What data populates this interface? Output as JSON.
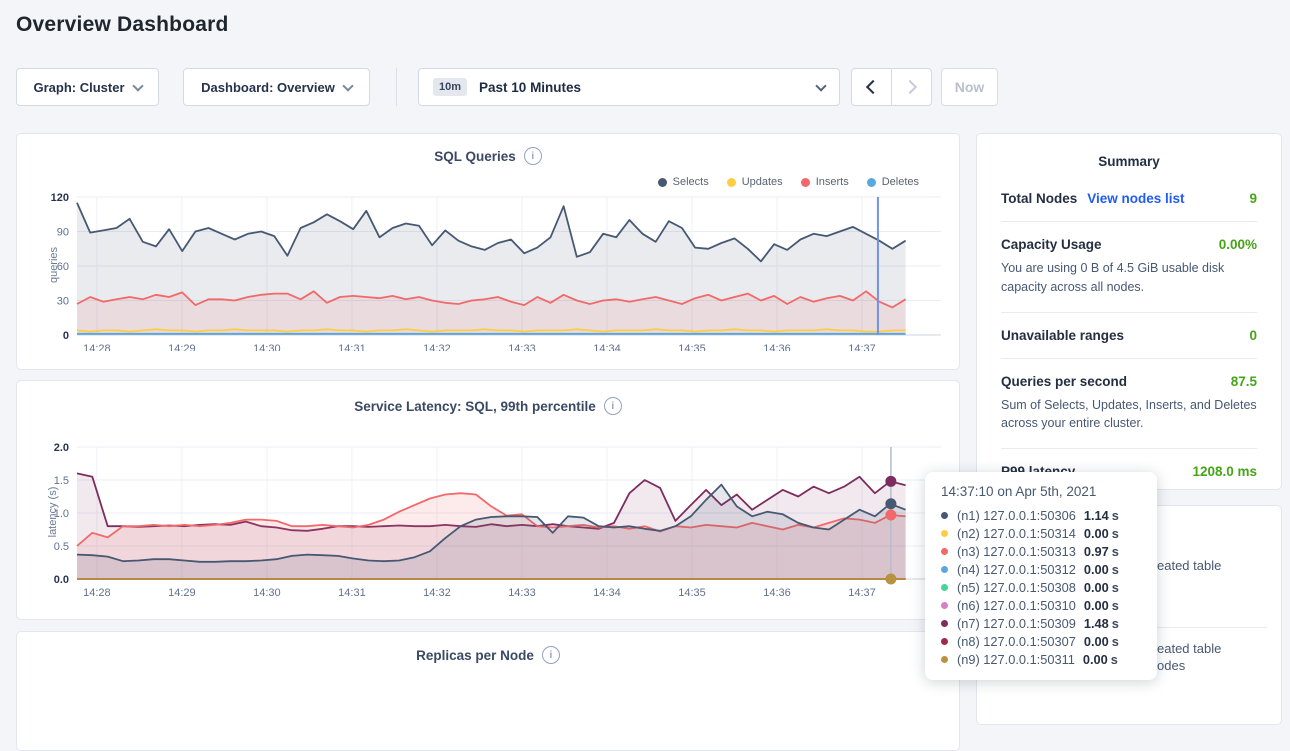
{
  "page": {
    "title": "Overview Dashboard"
  },
  "toolbar": {
    "graph_dropdown": "Graph: Cluster",
    "dashboard_dropdown": "Dashboard: Overview",
    "time_badge": "10m",
    "time_label": "Past 10 Minutes",
    "now_label": "Now"
  },
  "icons": {
    "info": "i"
  },
  "palette": {
    "n1": "#475872",
    "n2": "#FFCD44",
    "n3": "#F16969",
    "n4": "#5BA8DF",
    "n5": "#49D39A",
    "n6": "#D77FC9",
    "n7": "#7D2C5F",
    "n8": "#9E2B49",
    "n9": "#B8933F",
    "green": "#46a417",
    "link_blue": "#1f5cf6"
  },
  "chart_data": [
    {
      "type": "line",
      "title": "SQL Queries",
      "ylabel": "queries",
      "ylim": [
        0,
        120
      ],
      "y_ticks": [
        0,
        30,
        60,
        90,
        120
      ],
      "y_tick_labels": [
        "0",
        "30",
        "60",
        "90",
        "120"
      ],
      "x_ticks": [
        "14:28",
        "14:29",
        "14:30",
        "14:31",
        "14:32",
        "14:33",
        "14:34",
        "14:35",
        "14:36",
        "14:37"
      ],
      "grid": true,
      "legend_position": "top-right",
      "legend": [
        {
          "label": "Selects",
          "color": "#475872"
        },
        {
          "label": "Updates",
          "color": "#FFCD44"
        },
        {
          "label": "Inserts",
          "color": "#F16969"
        },
        {
          "label": "Deletes",
          "color": "#5BA8DF"
        }
      ],
      "series": [
        {
          "name": "Selects",
          "color": "#475872",
          "fill": "rgba(71,88,114,0.12)",
          "values": [
            115,
            89,
            91,
            93,
            101,
            81,
            77,
            92,
            73,
            90,
            93,
            88,
            83,
            88,
            90,
            86,
            69,
            93,
            98,
            105,
            99,
            92,
            108,
            85,
            93,
            97,
            95,
            78,
            91,
            82,
            77,
            74,
            80,
            83,
            71,
            76,
            85,
            112,
            68,
            72,
            88,
            85,
            100,
            88,
            81,
            99,
            93,
            76,
            75,
            80,
            84,
            75,
            64,
            79,
            74,
            83,
            88,
            86,
            90,
            94,
            88,
            82,
            75,
            82
          ]
        },
        {
          "name": "Inserts",
          "color": "#F16969",
          "fill": "rgba(241,105,105,0.12)",
          "values": [
            27,
            33,
            29,
            31,
            33,
            31,
            35,
            33,
            37,
            26,
            31,
            31,
            30,
            33,
            35,
            36,
            36,
            31,
            38,
            28,
            33,
            34,
            33,
            32,
            34,
            31,
            33,
            30,
            28,
            27,
            30,
            31,
            33,
            29,
            26,
            33,
            28,
            35,
            30,
            27,
            30,
            31,
            29,
            31,
            33,
            30,
            27,
            32,
            35,
            30,
            33,
            36,
            30,
            34,
            27,
            33,
            29,
            32,
            34,
            30,
            38,
            29,
            24,
            31
          ]
        },
        {
          "name": "Updates",
          "color": "#FFCD44",
          "fill": "none",
          "values": [
            4,
            3,
            4,
            4,
            3,
            4,
            5,
            4,
            4,
            3,
            4,
            4,
            5,
            4,
            4,
            4,
            3,
            4,
            4,
            5,
            4,
            4,
            3,
            4,
            4,
            5,
            4,
            3,
            4,
            4,
            4,
            5,
            4,
            4,
            3,
            4,
            4,
            4,
            5,
            4,
            3,
            4,
            4,
            4,
            5,
            4,
            4,
            3,
            4,
            4,
            5,
            4,
            4,
            3,
            4,
            4,
            4,
            5,
            4,
            4,
            3,
            3,
            4,
            4
          ]
        },
        {
          "name": "Deletes",
          "color": "#5BA8DF",
          "fill": "none",
          "values": [
            1,
            1
          ]
        }
      ],
      "crosshair": {
        "time": "14:37:10",
        "color": "#7292e8"
      }
    },
    {
      "type": "line",
      "title": "Service Latency: SQL, 99th percentile",
      "ylabel": "latency (s)",
      "ylim": [
        0,
        2.0
      ],
      "y_ticks": [
        0.0,
        0.5,
        1.0,
        1.5,
        2.0
      ],
      "y_tick_labels": [
        "0.0",
        "0.5",
        "1.0",
        "1.5",
        "2.0"
      ],
      "x_ticks": [
        "14:28",
        "14:29",
        "14:30",
        "14:31",
        "14:32",
        "14:33",
        "14:34",
        "14:35",
        "14:36",
        "14:37"
      ],
      "grid": true,
      "series": [
        {
          "name": "(n7) 127.0.0.1:50309",
          "color": "#7D2C5F",
          "fill": "rgba(125,44,95,0.10)",
          "values": [
            1.6,
            1.55,
            0.8,
            0.8,
            0.79,
            0.8,
            0.81,
            0.8,
            0.82,
            0.83,
            0.82,
            0.87,
            0.8,
            0.78,
            0.74,
            0.73,
            0.76,
            0.8,
            0.8,
            0.79,
            0.8,
            0.81,
            0.8,
            0.8,
            0.82,
            0.8,
            0.79,
            0.83,
            0.8,
            0.82,
            0.8,
            0.83,
            0.8,
            0.78,
            0.76,
            0.85,
            1.3,
            1.5,
            1.38,
            0.88,
            1.12,
            1.35,
            1.12,
            1.28,
            1.05,
            1.2,
            1.35,
            1.25,
            1.4,
            1.3,
            1.4,
            1.55,
            1.3,
            1.48,
            1.42
          ]
        },
        {
          "name": "(n3) 127.0.0.1:50313",
          "color": "#F16969",
          "fill": "rgba(241,105,105,0.14)",
          "values": [
            0.5,
            0.7,
            0.63,
            0.8,
            0.8,
            0.82,
            0.8,
            0.82,
            0.8,
            0.82,
            0.85,
            0.9,
            0.9,
            0.88,
            0.8,
            0.8,
            0.82,
            0.8,
            0.78,
            0.82,
            0.9,
            1.02,
            1.12,
            1.22,
            1.28,
            1.3,
            1.28,
            1.1,
            0.96,
            0.98,
            0.8,
            0.78,
            0.8,
            0.82,
            0.78,
            0.8,
            0.76,
            0.8,
            0.72,
            0.8,
            0.78,
            0.82,
            0.8,
            0.78,
            0.85,
            0.8,
            0.75,
            0.82,
            0.78,
            0.85,
            0.92,
            0.9,
            0.85,
            0.97,
            0.95
          ]
        },
        {
          "name": "(n1) 127.0.0.1:50306",
          "color": "#475872",
          "fill": "rgba(71,88,114,0.14)",
          "values": [
            0.37,
            0.36,
            0.34,
            0.27,
            0.28,
            0.3,
            0.3,
            0.28,
            0.26,
            0.26,
            0.27,
            0.27,
            0.28,
            0.3,
            0.35,
            0.37,
            0.36,
            0.35,
            0.31,
            0.28,
            0.27,
            0.28,
            0.33,
            0.42,
            0.62,
            0.8,
            0.9,
            0.94,
            0.95,
            0.95,
            0.94,
            0.7,
            0.95,
            0.93,
            0.8,
            0.78,
            0.8,
            0.76,
            0.73,
            0.8,
            0.95,
            1.2,
            1.43,
            1.1,
            0.95,
            1.02,
            0.98,
            0.85,
            0.78,
            0.75,
            0.9,
            1.05,
            0.95,
            1.14,
            1.05
          ]
        },
        {
          "name": "(n2) 127.0.0.1:50314",
          "color": "#FFCD44",
          "fill": "none",
          "values": [
            0,
            0
          ]
        },
        {
          "name": "(n4) 127.0.0.1:50312",
          "color": "#5BA8DF",
          "fill": "none",
          "values": [
            0,
            0
          ]
        },
        {
          "name": "(n5) 127.0.0.1:50308",
          "color": "#49D39A",
          "fill": "none",
          "values": [
            0,
            0
          ]
        },
        {
          "name": "(n6) 127.0.0.1:50310",
          "color": "#D77FC9",
          "fill": "none",
          "values": [
            0,
            0
          ]
        },
        {
          "name": "(n8) 127.0.0.1:50307",
          "color": "#9E2B49",
          "fill": "none",
          "values": [
            0,
            0
          ]
        },
        {
          "name": "(n9) 127.0.0.1:50311",
          "color": "#B8933F",
          "fill": "none",
          "values": [
            0,
            0
          ]
        }
      ],
      "crosshair": {
        "time": "14:37:10",
        "color": "#b6bdc9",
        "dots": [
          {
            "color": "#7D2C5F",
            "value": 1.48
          },
          {
            "color": "#475872",
            "value": 1.14
          },
          {
            "color": "#F16969",
            "value": 0.97
          },
          {
            "color": "#B8933F",
            "value": 0.0
          }
        ]
      }
    },
    {
      "type": "line",
      "title": "Replicas per Node"
    }
  ],
  "summary": {
    "title": "Summary",
    "rows": [
      {
        "label": "Total Nodes",
        "link": "View nodes list",
        "value": "9"
      },
      {
        "label": "Capacity Usage",
        "value": "0.00%",
        "desc": "You are using 0 B of 4.5 GiB usable disk capacity across all nodes."
      },
      {
        "label": "Unavailable ranges",
        "value": "0"
      },
      {
        "label": "Queries per second",
        "value": "87.5",
        "desc": "Sum of Selects, Updates, Inserts, and Deletes across your entire cluster."
      },
      {
        "label": "P99 latency",
        "value": "1208.0 ms"
      }
    ]
  },
  "events_panel": {
    "fragments": [
      "eated table",
      "eated table",
      "odes"
    ]
  },
  "tooltip": {
    "time": "14:37:10",
    "connector": "on",
    "date": "Apr 5th, 2021",
    "unit": "s",
    "rows": [
      {
        "color": "#475872",
        "label": "(n1) 127.0.0.1:50306",
        "value": "1.14"
      },
      {
        "color": "#FFCD44",
        "label": "(n2) 127.0.0.1:50314",
        "value": "0.00"
      },
      {
        "color": "#F16969",
        "label": "(n3) 127.0.0.1:50313",
        "value": "0.97"
      },
      {
        "color": "#5BA8DF",
        "label": "(n4) 127.0.0.1:50312",
        "value": "0.00"
      },
      {
        "color": "#49D39A",
        "label": "(n5) 127.0.0.1:50308",
        "value": "0.00"
      },
      {
        "color": "#D77FC9",
        "label": "(n6) 127.0.0.1:50310",
        "value": "0.00"
      },
      {
        "color": "#7D2C5F",
        "label": "(n7) 127.0.0.1:50309",
        "value": "1.48"
      },
      {
        "color": "#9E2B49",
        "label": "(n8) 127.0.0.1:50307",
        "value": "0.00"
      },
      {
        "color": "#B8933F",
        "label": "(n9) 127.0.0.1:50311",
        "value": "0.00"
      }
    ]
  }
}
